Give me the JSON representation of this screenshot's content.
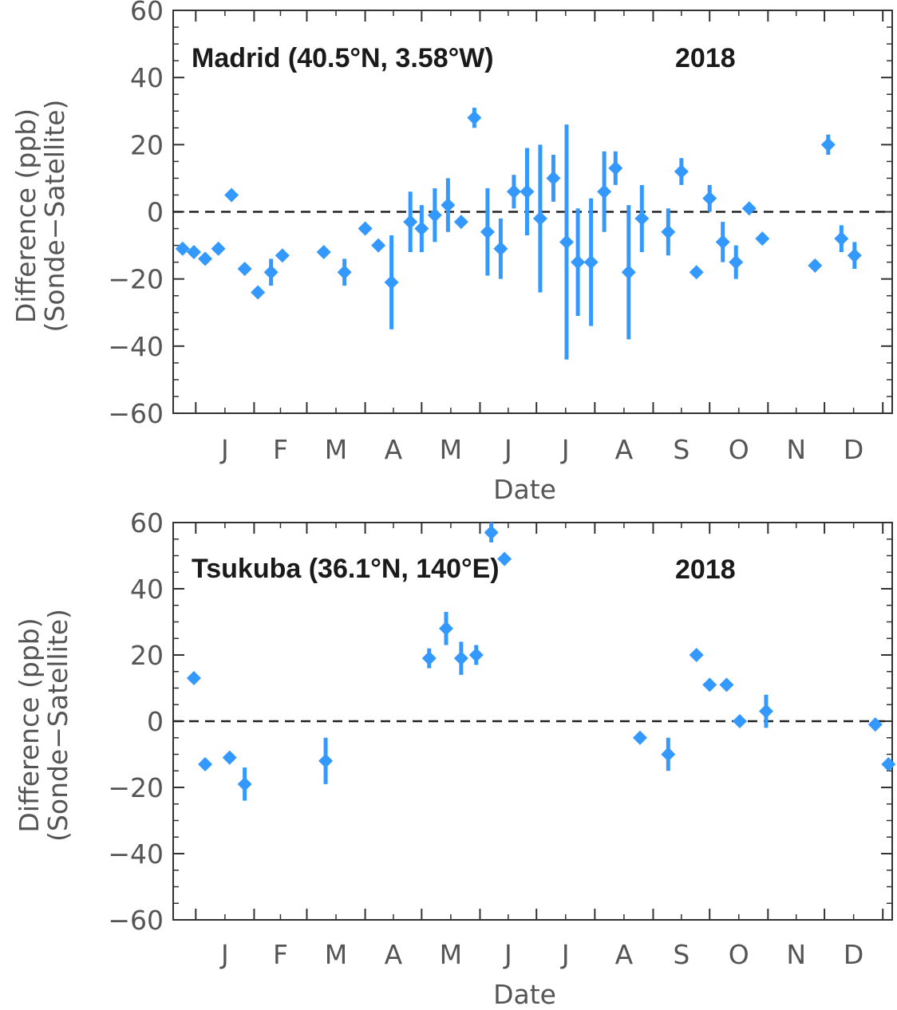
{
  "colors": {
    "marker": "#3399ff",
    "axis": "#333333",
    "text": "#555555",
    "zero_line": "#222222"
  },
  "chart_data": [
    {
      "type": "scatter",
      "station": "Madrid (40.5°N, 3.58°W)",
      "year": "2018",
      "xlabel": "Date",
      "ylabel_line1": "Difference (ppb)",
      "ylabel_line2": "(Sonde−Satellite)",
      "ylim": [
        -60,
        60
      ],
      "yticks": [
        -60,
        -40,
        -20,
        0,
        20,
        40,
        60
      ],
      "ytick_labels": [
        "−60",
        "−40",
        "−20",
        "0",
        "20",
        "40",
        "60"
      ],
      "month_labels": [
        "J",
        "F",
        "M",
        "A",
        "M",
        "J",
        "J",
        "A",
        "S",
        "O",
        "N",
        "D"
      ],
      "zero_line": "dashed",
      "points": [
        {
          "x": "2017-12-25",
          "y": -11,
          "err": 0
        },
        {
          "x": "2017-12-31",
          "y": -12,
          "err": 0
        },
        {
          "x": "2018-01-06",
          "y": -14,
          "err": 0
        },
        {
          "x": "2018-01-13",
          "y": -11,
          "err": 0
        },
        {
          "x": "2018-01-20",
          "y": 5,
          "err": 0
        },
        {
          "x": "2018-01-27",
          "y": -17,
          "err": 0
        },
        {
          "x": "2018-02-03",
          "y": -24,
          "err": 0
        },
        {
          "x": "2018-02-10",
          "y": -18,
          "err": 4
        },
        {
          "x": "2018-02-16",
          "y": -13,
          "err": 0
        },
        {
          "x": "2018-03-10",
          "y": -12,
          "err": 0
        },
        {
          "x": "2018-03-21",
          "y": -18,
          "err": 4
        },
        {
          "x": "2018-04-01",
          "y": -5,
          "err": 0
        },
        {
          "x": "2018-04-08",
          "y": -10,
          "err": 0
        },
        {
          "x": "2018-04-15",
          "y": -21,
          "err": 14
        },
        {
          "x": "2018-04-25",
          "y": -3,
          "err": 9
        },
        {
          "x": "2018-05-01",
          "y": -5,
          "err": 7
        },
        {
          "x": "2018-05-08",
          "y": -1,
          "err": 8
        },
        {
          "x": "2018-05-15",
          "y": 2,
          "err": 8
        },
        {
          "x": "2018-05-22",
          "y": -3,
          "err": 0
        },
        {
          "x": "2018-05-29",
          "y": 28,
          "err": 3
        },
        {
          "x": "2018-06-05",
          "y": -6,
          "err": 13
        },
        {
          "x": "2018-06-12",
          "y": -11,
          "err": 9
        },
        {
          "x": "2018-06-19",
          "y": 6,
          "err": 5
        },
        {
          "x": "2018-06-26",
          "y": 6,
          "err": 13
        },
        {
          "x": "2018-07-03",
          "y": -2,
          "err": 22
        },
        {
          "x": "2018-07-10",
          "y": 10,
          "err": 7
        },
        {
          "x": "2018-07-17",
          "y": -9,
          "err": 35
        },
        {
          "x": "2018-07-23",
          "y": -15,
          "err": 16
        },
        {
          "x": "2018-07-30",
          "y": -15,
          "err": 19
        },
        {
          "x": "2018-08-06",
          "y": 6,
          "err": 12
        },
        {
          "x": "2018-08-12",
          "y": 13,
          "err": 5
        },
        {
          "x": "2018-08-19",
          "y": -18,
          "err": 20
        },
        {
          "x": "2018-08-26",
          "y": -2,
          "err": 10
        },
        {
          "x": "2018-09-09",
          "y": -6,
          "err": 7
        },
        {
          "x": "2018-09-16",
          "y": 12,
          "err": 4
        },
        {
          "x": "2018-09-24",
          "y": -18,
          "err": 0
        },
        {
          "x": "2018-10-01",
          "y": 4,
          "err": 4
        },
        {
          "x": "2018-10-08",
          "y": -9,
          "err": 6
        },
        {
          "x": "2018-10-15",
          "y": -15,
          "err": 5
        },
        {
          "x": "2018-10-22",
          "y": 1,
          "err": 0
        },
        {
          "x": "2018-10-29",
          "y": -8,
          "err": 0
        },
        {
          "x": "2018-11-26",
          "y": -16,
          "err": 0
        },
        {
          "x": "2018-12-03",
          "y": 20,
          "err": 3
        },
        {
          "x": "2018-12-10",
          "y": -8,
          "err": 4
        },
        {
          "x": "2018-12-17",
          "y": -13,
          "err": 4
        }
      ]
    },
    {
      "type": "scatter",
      "station": "Tsukuba (36.1°N, 140°E)",
      "year": "2018",
      "xlabel": "Date",
      "ylabel_line1": "Difference (ppb)",
      "ylabel_line2": "(Sonde−Satellite)",
      "ylim": [
        -60,
        60
      ],
      "yticks": [
        -60,
        -40,
        -20,
        0,
        20,
        40,
        60
      ],
      "ytick_labels": [
        "−60",
        "−40",
        "−20",
        "0",
        "20",
        "40",
        "60"
      ],
      "month_labels": [
        "J",
        "F",
        "M",
        "A",
        "M",
        "J",
        "J",
        "A",
        "S",
        "O",
        "N",
        "D"
      ],
      "zero_line": "dashed",
      "points": [
        {
          "x": "2017-12-31",
          "y": 13,
          "err": 0
        },
        {
          "x": "2018-01-06",
          "y": -13,
          "err": 0
        },
        {
          "x": "2018-01-19",
          "y": -11,
          "err": 0
        },
        {
          "x": "2018-01-27",
          "y": -19,
          "err": 5
        },
        {
          "x": "2018-03-11",
          "y": -12,
          "err": 7
        },
        {
          "x": "2018-05-05",
          "y": 19,
          "err": 3
        },
        {
          "x": "2018-05-14",
          "y": 28,
          "err": 5
        },
        {
          "x": "2018-05-22",
          "y": 19,
          "err": 5
        },
        {
          "x": "2018-05-30",
          "y": 20,
          "err": 3
        },
        {
          "x": "2018-06-07",
          "y": 57,
          "err": 3
        },
        {
          "x": "2018-06-14",
          "y": 49,
          "err": 0
        },
        {
          "x": "2018-08-25",
          "y": -5,
          "err": 0
        },
        {
          "x": "2018-09-09",
          "y": -10,
          "err": 5
        },
        {
          "x": "2018-09-24",
          "y": 20,
          "err": 0
        },
        {
          "x": "2018-10-01",
          "y": 11,
          "err": 0
        },
        {
          "x": "2018-10-10",
          "y": 11,
          "err": 0
        },
        {
          "x": "2018-10-17",
          "y": 0,
          "err": 0
        },
        {
          "x": "2018-10-31",
          "y": 3,
          "err": 5
        },
        {
          "x": "2018-12-28",
          "y": -1,
          "err": 0
        },
        {
          "x": "2019-01-04",
          "y": -13,
          "err": 0
        }
      ]
    }
  ]
}
